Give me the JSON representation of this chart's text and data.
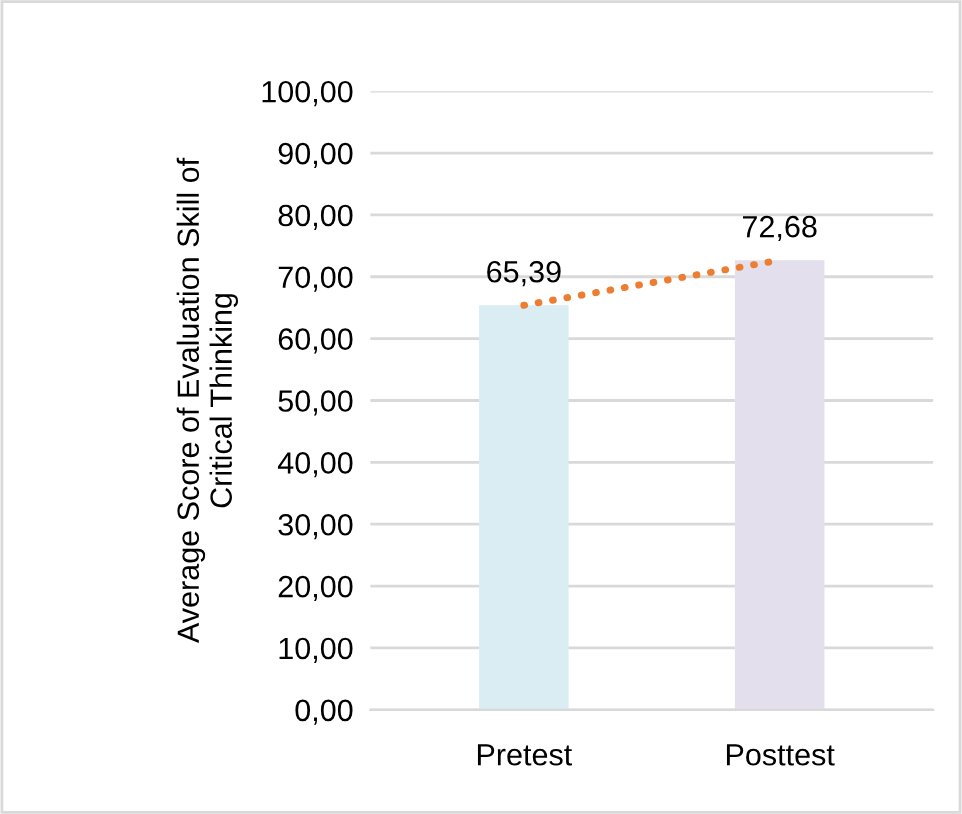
{
  "chart_data": {
    "type": "bar",
    "ylabel": "Average Score of Evaluation Skill of\nCritical Thinking",
    "categories": [
      "Pretest",
      "Posttest"
    ],
    "series": [
      {
        "colors": [
          "#daedf3",
          "#e4dfec"
        ],
        "values": [
          65.39,
          72.68
        ],
        "value_labels": [
          "65,39",
          "72,68"
        ]
      },
      {
        "type": "line",
        "color": "#ed7d31",
        "line_style": "dotted",
        "values": [
          65.39,
          72.68
        ]
      }
    ],
    "ylim": [
      0,
      100
    ],
    "yticks": [
      {
        "value": 0,
        "label": "0,00"
      },
      {
        "value": 10,
        "label": "10,00"
      },
      {
        "value": 20,
        "label": "20,00"
      },
      {
        "value": 30,
        "label": "30,00"
      },
      {
        "value": 40,
        "label": "40,00"
      },
      {
        "value": 50,
        "label": "50,00"
      },
      {
        "value": 60,
        "label": "60,00"
      },
      {
        "value": 70,
        "label": "70,00"
      },
      {
        "value": 80,
        "label": "80,00"
      },
      {
        "value": 90,
        "label": "90,00"
      },
      {
        "value": 100,
        "label": "100,00"
      }
    ],
    "grid": "y"
  }
}
